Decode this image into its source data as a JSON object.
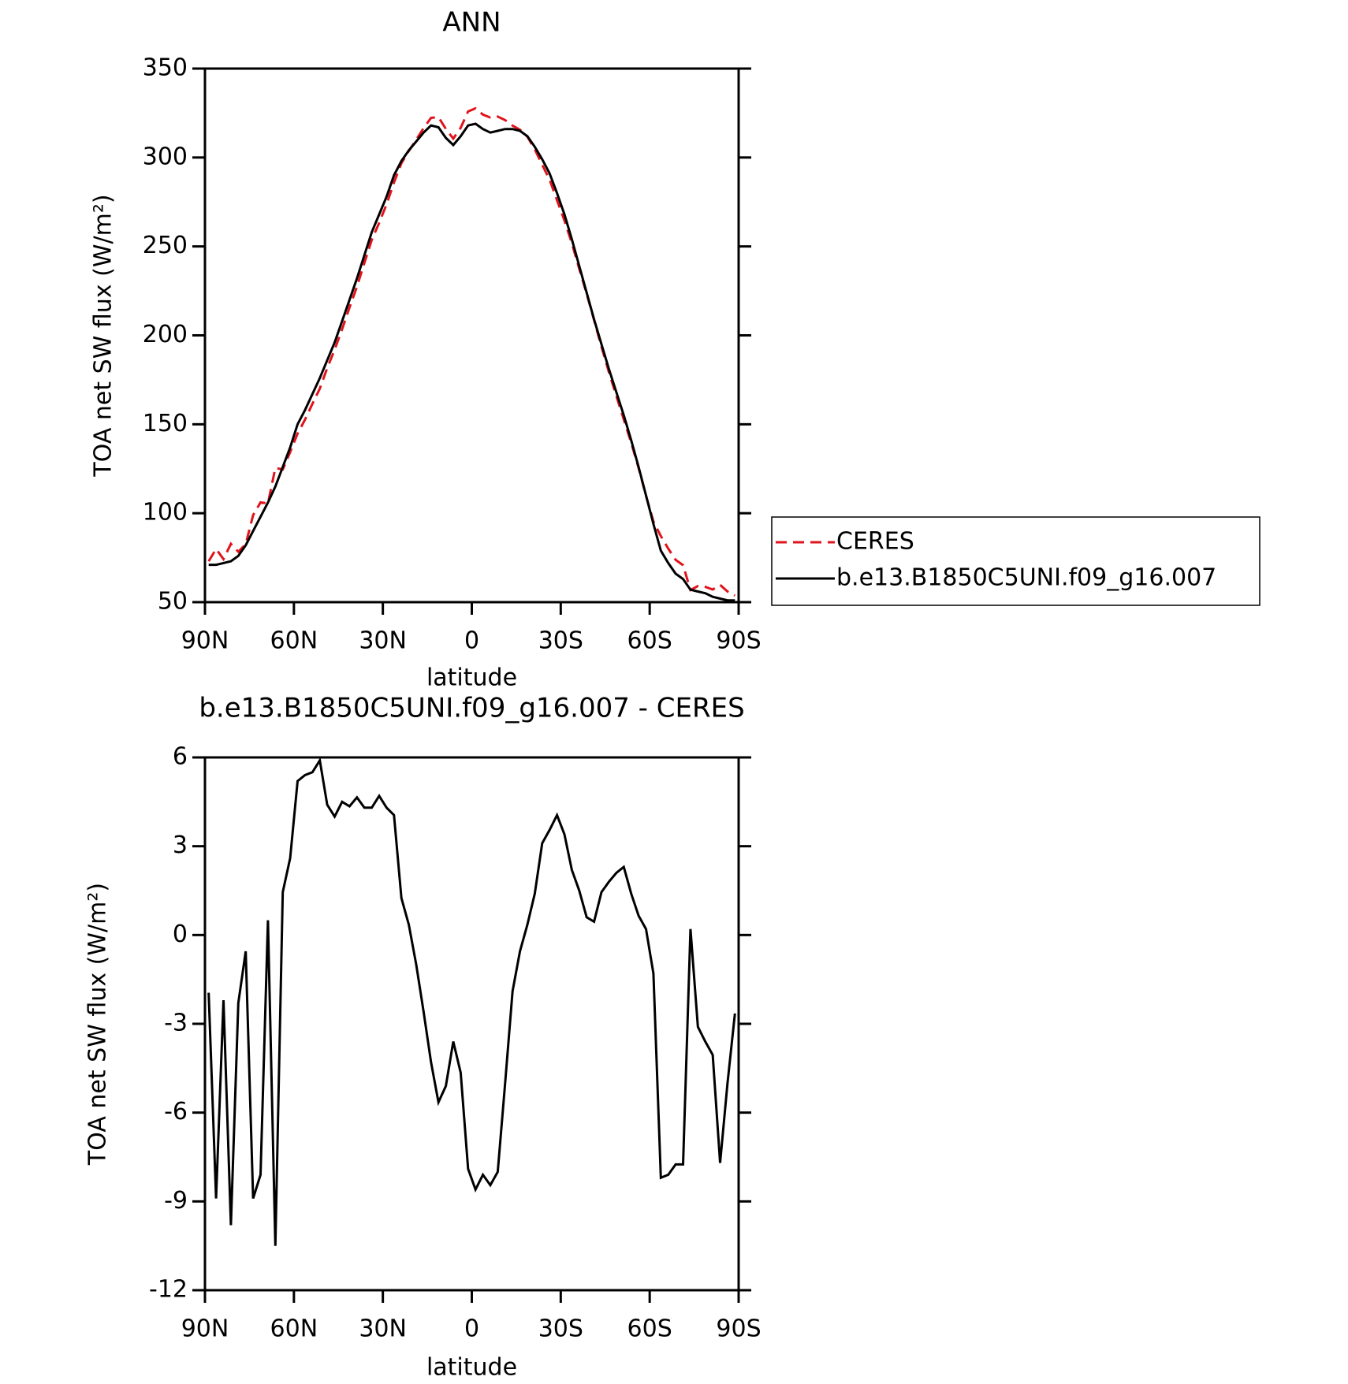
{
  "chart_data": [
    {
      "type": "line",
      "title": "ANN",
      "xlabel": "latitude",
      "ylabel": "TOA net SW flux (W/m²)",
      "xlim": [
        90,
        -90
      ],
      "xticks": [
        {
          "value": 90,
          "label": "90N"
        },
        {
          "value": 60,
          "label": "60N"
        },
        {
          "value": 30,
          "label": "30N"
        },
        0,
        {
          "value": -30,
          "label": "30S"
        },
        {
          "value": -60,
          "label": "60S"
        },
        {
          "value": -90,
          "label": "90S"
        }
      ],
      "ylim": [
        50,
        350
      ],
      "yticks": [
        50,
        100,
        150,
        200,
        250,
        300,
        350
      ],
      "legend": "right",
      "x": [
        88.75,
        86.25,
        83.75,
        81.25,
        78.75,
        76.25,
        73.75,
        71.25,
        68.75,
        66.25,
        63.75,
        61.25,
        58.75,
        56.25,
        53.75,
        51.25,
        48.75,
        46.25,
        43.75,
        41.25,
        38.75,
        36.25,
        33.75,
        31.25,
        28.75,
        26.25,
        23.75,
        21.25,
        18.75,
        16.25,
        13.75,
        11.25,
        8.75,
        6.25,
        3.75,
        1.25,
        -1.25,
        -3.75,
        -6.25,
        -8.75,
        -11.25,
        -13.75,
        -16.25,
        -18.75,
        -21.25,
        -23.75,
        -26.25,
        -28.75,
        -31.25,
        -33.75,
        -36.25,
        -38.75,
        -41.25,
        -43.75,
        -46.25,
        -48.75,
        -51.25,
        -53.75,
        -56.25,
        -58.75,
        -61.25,
        -63.75,
        -66.25,
        -68.75,
        -71.25,
        -73.75,
        -76.25,
        -78.75,
        -81.25,
        -83.75,
        -86.25,
        -88.75
      ],
      "series": [
        {
          "name": "CERES",
          "color": "#e0141c",
          "dashed": true,
          "values": [
            73.0,
            79.9,
            74.2,
            82.8,
            78.3,
            82.6,
            98.9,
            106.1,
            105.5,
            125.5,
            124.6,
            134.4,
            144.8,
            152.6,
            161.5,
            170.1,
            181.6,
            192,
            203.5,
            215.7,
            227.4,
            240.7,
            253.7,
            263.3,
            273.7,
            286.0,
            296.8,
            303.7,
            310,
            316.6,
            322.3,
            322.7,
            316.1,
            310.6,
            316.7,
            325.9,
            327.6,
            324.1,
            322.5,
            323,
            321,
            317.9,
            315.6,
            311.7,
            304.6,
            295.9,
            287.5,
            276,
            264.6,
            251.8,
            237.5,
            223.4,
            208.6,
            193.6,
            179.2,
            165.9,
            152.7,
            139.6,
            125.4,
            109.8,
            95.3,
            87.2,
            80.1,
            73.8,
            70.8,
            56.8,
            59.1,
            58.6,
            57.1,
            59.7,
            56,
            53.7
          ]
        },
        {
          "name": "b.e13.B1850C5UNI.f09_g16.007",
          "color": "#000000",
          "dashed": false,
          "values": [
            71,
            71,
            72,
            73,
            76,
            82,
            90,
            98,
            106,
            115,
            126,
            137,
            150,
            158,
            167,
            176,
            186,
            196,
            208,
            220,
            232,
            245,
            258,
            268,
            278,
            290,
            298,
            304,
            309,
            314,
            318,
            317,
            311,
            307,
            312,
            318,
            319,
            316,
            314,
            315,
            316,
            316,
            315,
            312,
            306,
            299,
            291,
            280,
            268,
            254,
            239,
            224,
            209,
            195,
            181,
            168,
            155,
            141,
            126,
            110,
            94,
            79,
            72,
            66,
            63,
            57,
            56,
            55,
            53,
            52,
            51,
            51
          ]
        }
      ]
    },
    {
      "type": "line",
      "title": "b.e13.B1850C5UNI.f09_g16.007 - CERES",
      "xlabel": "latitude",
      "ylabel": "TOA net SW flux (W/m²)",
      "xlim": [
        90,
        -90
      ],
      "xticks": [
        {
          "value": 90,
          "label": "90N"
        },
        {
          "value": 60,
          "label": "60N"
        },
        {
          "value": 30,
          "label": "30N"
        },
        0,
        {
          "value": -30,
          "label": "30S"
        },
        {
          "value": -60,
          "label": "60S"
        },
        {
          "value": -90,
          "label": "90S"
        }
      ],
      "ylim": [
        -12,
        6
      ],
      "yticks": [
        -12,
        -9,
        -6,
        -3,
        0,
        3,
        6
      ],
      "x": [
        88.75,
        86.25,
        83.75,
        81.25,
        78.75,
        76.25,
        73.75,
        71.25,
        68.75,
        66.25,
        63.75,
        61.25,
        58.75,
        56.25,
        53.75,
        51.25,
        48.75,
        46.25,
        43.75,
        41.25,
        38.75,
        36.25,
        33.75,
        31.25,
        28.75,
        26.25,
        23.75,
        21.25,
        18.75,
        16.25,
        13.75,
        11.25,
        8.75,
        6.25,
        3.75,
        1.25,
        -1.25,
        -3.75,
        -6.25,
        -8.75,
        -11.25,
        -13.75,
        -16.25,
        -18.75,
        -21.25,
        -23.75,
        -26.25,
        -28.75,
        -31.25,
        -33.75,
        -36.25,
        -38.75,
        -41.25,
        -43.75,
        -46.25,
        -48.75,
        -51.25,
        -53.75,
        -56.25,
        -58.75,
        -61.25,
        -63.75,
        -66.25,
        -68.75,
        -71.25,
        -73.75,
        -76.25,
        -78.75,
        -81.25,
        -83.75,
        -86.25,
        -88.75
      ],
      "series": [
        {
          "color": "#000000",
          "values": [
            -1.95,
            -8.9,
            -2.2,
            -9.8,
            -2.3,
            -0.55,
            -8.9,
            -8.1,
            0.5,
            -10.5,
            1.45,
            2.6,
            5.2,
            5.4,
            5.5,
            5.9,
            4.4,
            4.0,
            4.5,
            4.35,
            4.65,
            4.3,
            4.3,
            4.7,
            4.3,
            4.05,
            1.25,
            0.35,
            -1.0,
            -2.6,
            -4.3,
            -5.65,
            -5.1,
            -3.6,
            -4.65,
            -7.9,
            -8.6,
            -8.1,
            -8.45,
            -8.0,
            -5.0,
            -1.9,
            -0.55,
            0.35,
            1.4,
            3.1,
            3.55,
            4.05,
            3.4,
            2.2,
            1.5,
            0.6,
            0.45,
            1.45,
            1.8,
            2.1,
            2.3,
            1.4,
            0.65,
            0.2,
            -1.3,
            -8.2,
            -8.1,
            -7.75,
            -7.75,
            0.2,
            -3.1,
            -3.6,
            -4.05,
            -7.7,
            -5.0,
            -2.65
          ]
        }
      ]
    }
  ]
}
